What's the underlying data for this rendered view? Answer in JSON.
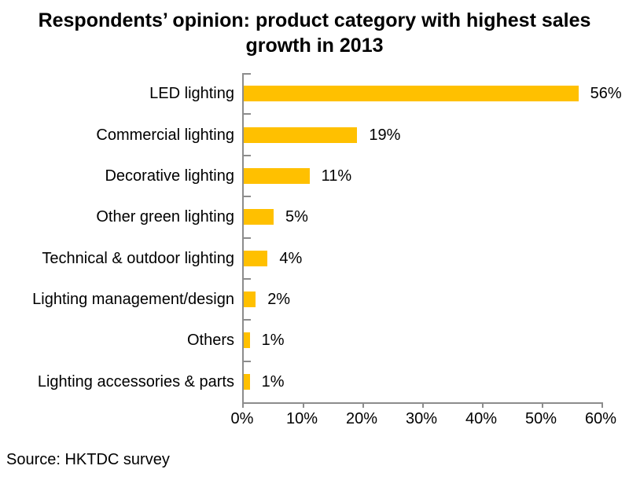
{
  "title": {
    "text": "Respondents’ opinion: product category with highest sales growth in 2013",
    "lines": [
      "Respondents’ opinion: product category with highest sales",
      "growth in 2013"
    ]
  },
  "source": "Source: HKTDC survey",
  "chart_data": {
    "type": "bar",
    "orientation": "horizontal",
    "title": "Respondents’ opinion: product category with highest sales growth in 2013",
    "categories": [
      "LED lighting",
      "Commercial lighting",
      "Decorative lighting",
      "Other green lighting",
      "Technical & outdoor lighting",
      "Lighting management/design",
      "Others",
      "Lighting accessories & parts"
    ],
    "values": [
      56,
      19,
      11,
      5,
      4,
      2,
      1,
      1
    ],
    "value_labels": [
      "56%",
      "19%",
      "11%",
      "5%",
      "4%",
      "2%",
      "1%",
      "1%"
    ],
    "xlabel": "",
    "ylabel": "",
    "xlim": [
      0,
      60
    ],
    "x_tick_values": [
      0,
      10,
      20,
      30,
      40,
      50,
      60
    ],
    "x_tick_labels": [
      "0%",
      "10%",
      "20%",
      "30%",
      "40%",
      "50%",
      "60%"
    ],
    "grid": false,
    "legend_position": "none",
    "bar_color": "#FFC000",
    "axis_color": "#8C8C8C",
    "text_color": "#000000",
    "background_color": "#FFFFFF",
    "source_note": "Source: HKTDC survey"
  }
}
